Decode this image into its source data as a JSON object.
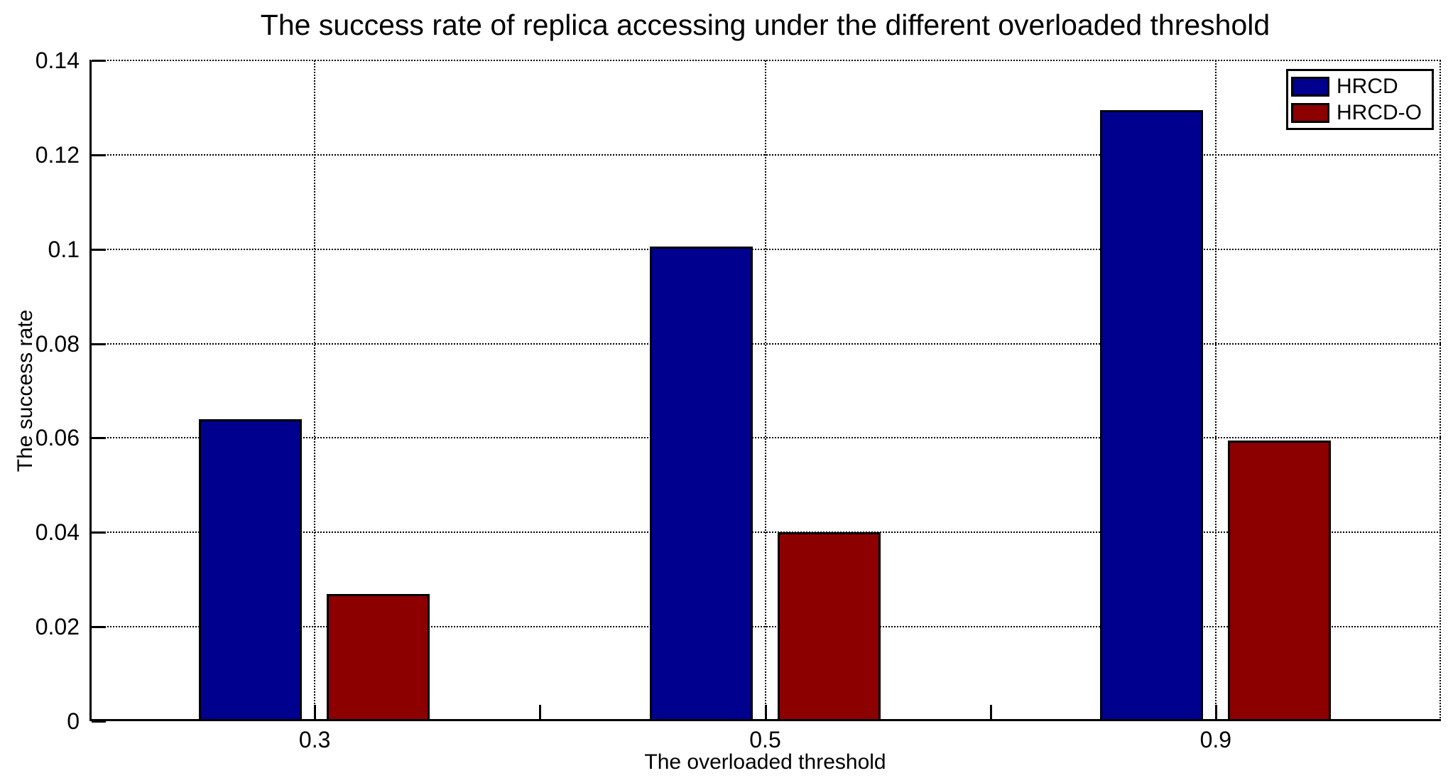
{
  "title": "The success rate of replica accessing under the different overloaded threshold",
  "chart_data": {
    "type": "bar",
    "title": "The success rate of replica accessing under the different overloaded threshold",
    "xlabel": "The overloaded threshold",
    "ylabel": "The success rate",
    "categories": [
      "0.3",
      "0.5",
      "0.9"
    ],
    "series": [
      {
        "name": "HRCD",
        "color": "#00008F",
        "values": [
          0.064,
          0.1005,
          0.1295
        ]
      },
      {
        "name": "HRCD-O",
        "color": "#8C0000",
        "values": [
          0.027,
          0.04,
          0.0595
        ]
      }
    ],
    "ylim": [
      0,
      0.14
    ],
    "y_ticks": [
      0,
      0.02,
      0.04,
      0.06,
      0.08,
      0.1,
      0.12,
      0.14
    ],
    "y_tick_labels": [
      "0",
      "0.02",
      "0.04",
      "0.06",
      "0.08",
      "0.1",
      "0.12",
      "0.14"
    ],
    "grid": "dotted",
    "grid_color": "#000000",
    "axis_color": "#000000",
    "background": "#ffffff",
    "legend_position": "top-right"
  }
}
